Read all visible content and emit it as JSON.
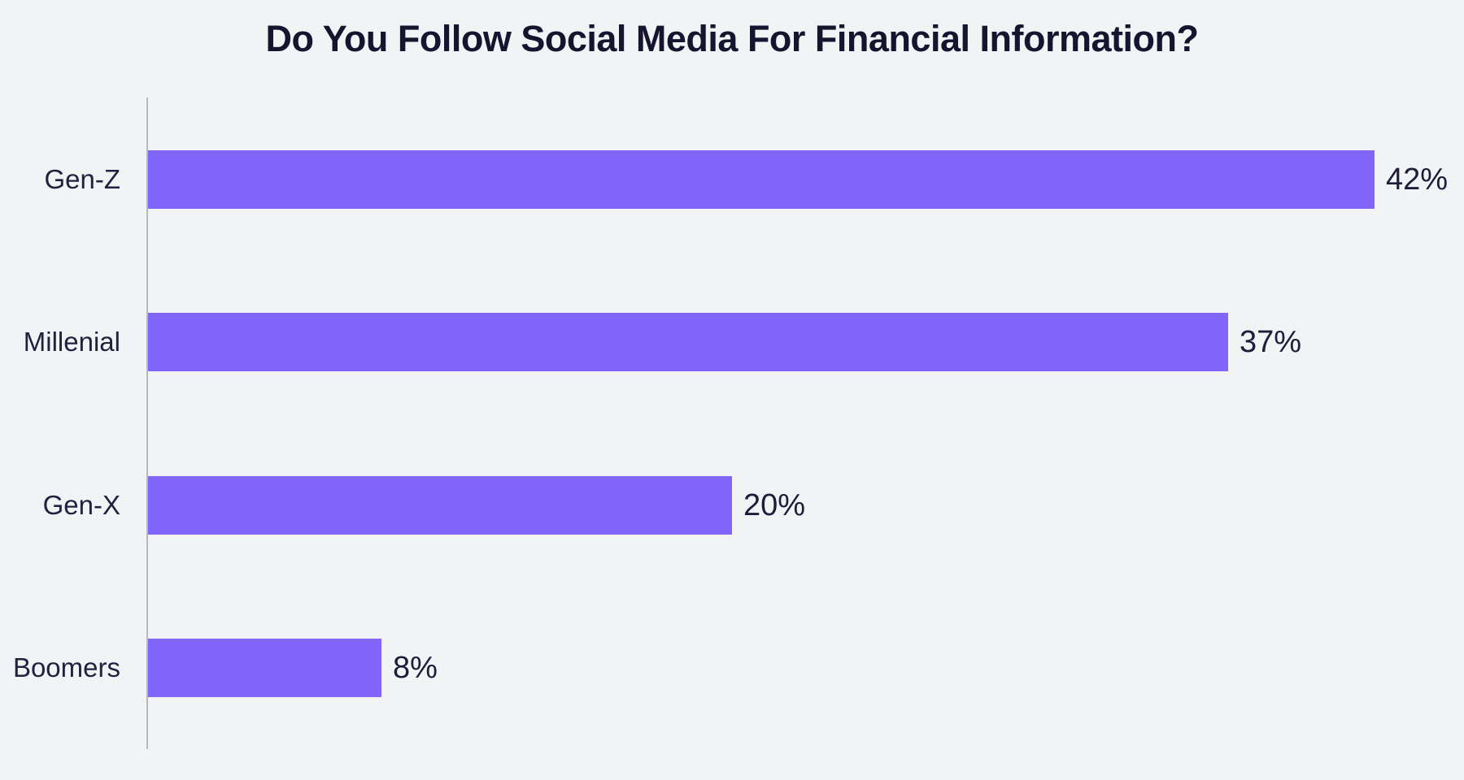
{
  "chart_data": {
    "type": "bar",
    "orientation": "horizontal",
    "title": "Do You Follow Social Media For Financial Information?",
    "categories": [
      "Gen-Z",
      "Millenial",
      "Gen-X",
      "Boomers"
    ],
    "values": [
      42,
      37,
      20,
      8
    ],
    "value_labels": [
      "42%",
      "37%",
      "20%",
      "8%"
    ],
    "xlabel": "",
    "ylabel": "",
    "xlim": [
      0,
      45
    ],
    "grid": false,
    "legend": false,
    "colors": {
      "bar": "#8265fa",
      "background": "#f2f3f5",
      "title_text": "#16142f",
      "label_text": "#232140",
      "value_text": "#1e1c3a",
      "axis_line": "#b6b9c2"
    }
  }
}
